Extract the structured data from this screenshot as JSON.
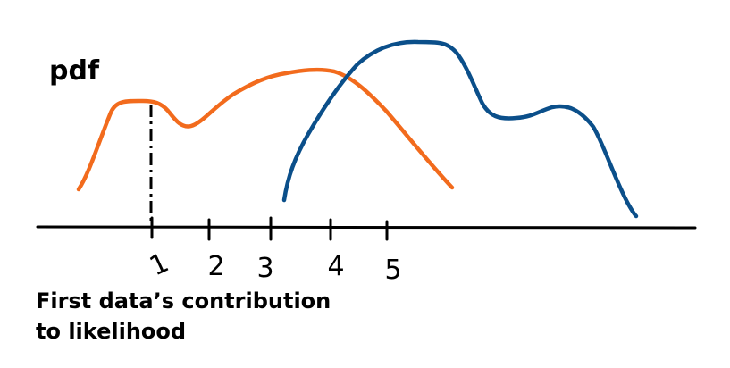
{
  "y_label": "pdf",
  "caption": {
    "line1": "First data’s contribution",
    "line2": "to likelihood"
  },
  "tick_labels": [
    "1",
    "2",
    "3",
    "4",
    "5"
  ],
  "colors": {
    "orange_curve": "#f26b1d",
    "blue_curve": "#0b4f8a",
    "axis": "#000000"
  }
}
